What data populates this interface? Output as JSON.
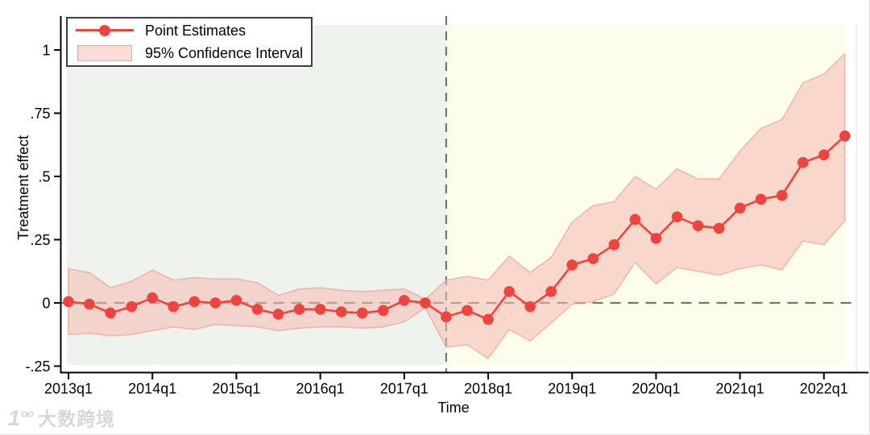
{
  "legend": {
    "point_estimates_label": "Point Estimates",
    "ci_label": "95% Confidence Interval"
  },
  "axes": {
    "y_title": "Treatment effect",
    "x_title": "Time",
    "y_ticks": [
      {
        "v": -0.25,
        "label": "-.25"
      },
      {
        "v": 0,
        "label": "0"
      },
      {
        "v": 0.25,
        "label": ".25"
      },
      {
        "v": 0.5,
        "label": ".5"
      },
      {
        "v": 0.75,
        "label": ".75"
      },
      {
        "v": 1,
        "label": "1"
      }
    ],
    "x_ticks": [
      {
        "i": 0,
        "label": "2013q1"
      },
      {
        "i": 4,
        "label": "2014q1"
      },
      {
        "i": 8,
        "label": "2015q1"
      },
      {
        "i": 12,
        "label": "2016q1"
      },
      {
        "i": 16,
        "label": "2017q1"
      },
      {
        "i": 20,
        "label": "2018q1"
      },
      {
        "i": 24,
        "label": "2019q1"
      },
      {
        "i": 28,
        "label": "2020q1"
      },
      {
        "i": 32,
        "label": "2021q1"
      },
      {
        "i": 36,
        "label": "2022q1"
      }
    ]
  },
  "colors": {
    "line": "#f0423e",
    "marker": "#f0423e",
    "ci_fill": "#f6bab3",
    "ci_edge": "#ee968e",
    "pre_bg": "#eef4ed",
    "post_bg": "#fdfdeb",
    "dashed": "#717771",
    "axis": "#000000",
    "plot_border": "#dcdcdc"
  },
  "chart_data": {
    "type": "line",
    "title": "",
    "xlabel": "Time",
    "ylabel": "Treatment effect",
    "ylim": [
      -0.25,
      1.1
    ],
    "grid": false,
    "legend_position": "top-left",
    "treatment_time": "2017q3",
    "treatment_index": 18,
    "reference_line_y": 0,
    "x": [
      "2013q1",
      "2013q2",
      "2013q3",
      "2013q4",
      "2014q1",
      "2014q2",
      "2014q3",
      "2014q4",
      "2015q1",
      "2015q2",
      "2015q3",
      "2015q4",
      "2016q1",
      "2016q2",
      "2016q3",
      "2016q4",
      "2017q1",
      "2017q2",
      "2017q3",
      "2017q4",
      "2018q1",
      "2018q2",
      "2018q3",
      "2018q4",
      "2019q1",
      "2019q2",
      "2019q3",
      "2019q4",
      "2020q1",
      "2020q2",
      "2020q3",
      "2020q4",
      "2021q1",
      "2021q2",
      "2021q3",
      "2021q4",
      "2022q1",
      "2022q2"
    ],
    "series": [
      {
        "name": "Point Estimates",
        "values": [
          0.005,
          -0.005,
          -0.04,
          -0.015,
          0.02,
          -0.015,
          0.005,
          0.0,
          0.01,
          -0.025,
          -0.045,
          -0.025,
          -0.025,
          -0.035,
          -0.04,
          -0.03,
          0.01,
          0.0,
          -0.055,
          -0.03,
          -0.065,
          0.045,
          -0.015,
          0.045,
          0.15,
          0.175,
          0.23,
          0.33,
          0.255,
          0.34,
          0.305,
          0.295,
          0.375,
          0.41,
          0.425,
          0.555,
          0.585,
          0.66
        ]
      },
      {
        "name": "95% CI lower",
        "values": [
          -0.125,
          -0.12,
          -0.13,
          -0.125,
          -0.11,
          -0.095,
          -0.105,
          -0.085,
          -0.09,
          -0.095,
          -0.11,
          -0.1,
          -0.095,
          -0.095,
          -0.1,
          -0.095,
          -0.075,
          -0.02,
          -0.175,
          -0.165,
          -0.22,
          -0.105,
          -0.15,
          -0.08,
          -0.005,
          0.005,
          0.035,
          0.16,
          0.075,
          0.14,
          0.125,
          0.11,
          0.135,
          0.15,
          0.13,
          0.245,
          0.23,
          0.325
        ]
      },
      {
        "name": "95% CI upper",
        "values": [
          0.135,
          0.12,
          0.06,
          0.085,
          0.13,
          0.09,
          0.1,
          0.095,
          0.095,
          0.08,
          0.03,
          0.055,
          0.06,
          0.05,
          0.045,
          0.05,
          0.055,
          0.015,
          0.09,
          0.105,
          0.09,
          0.185,
          0.12,
          0.18,
          0.32,
          0.385,
          0.4,
          0.5,
          0.45,
          0.53,
          0.49,
          0.49,
          0.6,
          0.69,
          0.725,
          0.87,
          0.905,
          0.985
        ]
      }
    ]
  },
  "watermark": {
    "logo": "1",
    "logo_sup": "oo",
    "text": "大数跨境"
  }
}
